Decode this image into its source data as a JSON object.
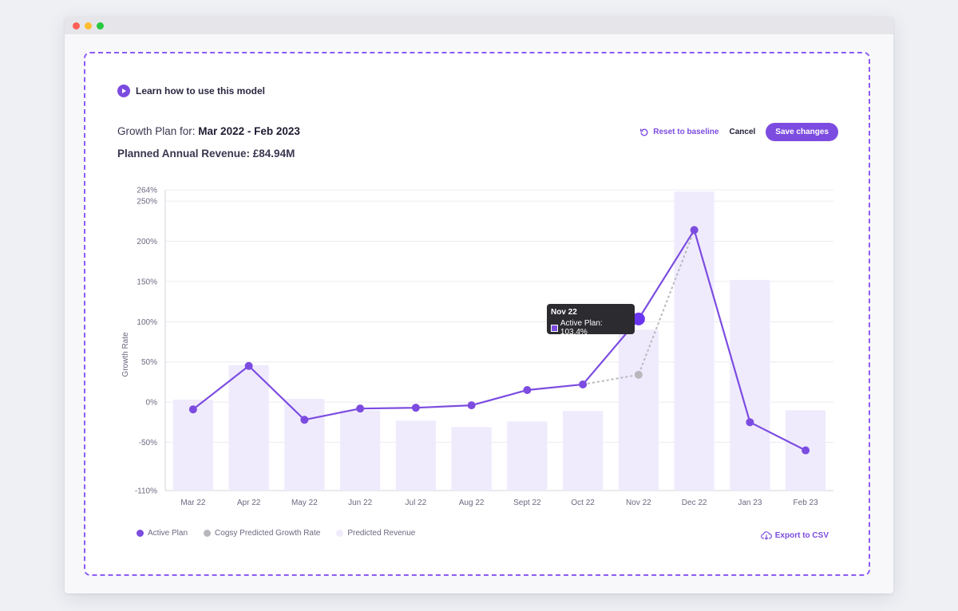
{
  "learn": {
    "label": "Learn how to use this model"
  },
  "plan": {
    "period_label": "Growth Plan for: ",
    "period_value": "Mar 2022 - Feb 2023",
    "revenue_label": "Planned Annual Revenue: ",
    "revenue_value": "£84.94M"
  },
  "actions": {
    "reset_label": "Reset to baseline",
    "cancel_label": "Cancel",
    "save_label": "Save changes"
  },
  "colors": {
    "accent": "#7c4ce0",
    "predicted_line": "#b8b8bc",
    "revenue_bar": "#efebfd"
  },
  "chart_data": {
    "type": "bar",
    "ylabel": "Growth Rate",
    "ylim": [
      -110,
      264
    ],
    "y_ticks": [
      "-110%",
      "-50%",
      "0%",
      "50%",
      "100%",
      "150%",
      "200%",
      "250%",
      "264%"
    ],
    "y_tick_values": [
      -110,
      -50,
      0,
      50,
      100,
      150,
      200,
      250,
      264
    ],
    "categories": [
      "Mar 22",
      "Apr 22",
      "May 22",
      "Jun 22",
      "Jul 22",
      "Aug 22",
      "Sept 22",
      "Oct 22",
      "Nov 22",
      "Dec 22",
      "Jan 23",
      "Feb 23"
    ],
    "series": [
      {
        "name": "Predicted Revenue",
        "kind": "bar",
        "values": [
          3,
          46,
          4,
          -10,
          -23,
          -31,
          -24,
          -11,
          90,
          262,
          152,
          -10
        ]
      },
      {
        "name": "Active Plan",
        "kind": "line",
        "values": [
          -9,
          45,
          -22,
          -8,
          -7,
          -4,
          15,
          22,
          103.4,
          214,
          -25,
          -60
        ]
      },
      {
        "name": "Cogsy Predicted Growth Rate",
        "kind": "dashed-line",
        "x": [
          "Oct 22",
          "Nov 22",
          "Dec 22"
        ],
        "values": [
          22,
          34,
          214
        ]
      }
    ],
    "legend": [
      "Active Plan",
      "Cogsy Predicted Growth Rate",
      "Predicted Revenue"
    ],
    "legend_position": "bottom-left",
    "grid": true
  },
  "tooltip": {
    "title": "Nov 22",
    "text": "Active Plan: 103.4%"
  },
  "export": {
    "label": "Export to CSV"
  }
}
